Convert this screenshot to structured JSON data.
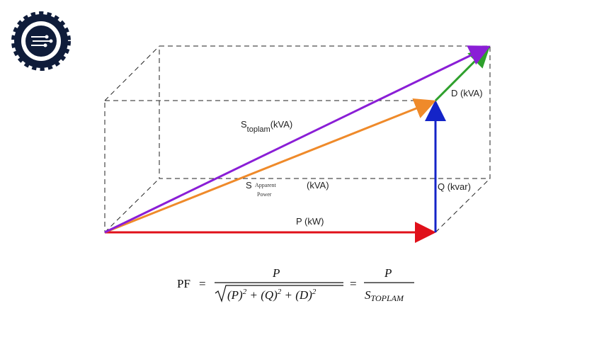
{
  "diagram": {
    "labels": {
      "s_total": {
        "main": "S",
        "sub": "toplam",
        "unit": "(kVA)"
      },
      "s_apparent": {
        "main": "S",
        "sub1": "Apparent",
        "sub2": "Power",
        "unit": "(kVA)"
      },
      "d": "D (kVA)",
      "q": "Q (kvar)",
      "p": "P (kW)"
    },
    "formula": {
      "lhs": "PF",
      "eq1": "=",
      "num1": "P",
      "den1": [
        "(P)",
        "2",
        " + (Q)",
        "2",
        " + (D)",
        "2"
      ],
      "eq2": "=",
      "num2": "P",
      "den2": {
        "main": "S",
        "sub": "TOPLAM"
      }
    }
  }
}
